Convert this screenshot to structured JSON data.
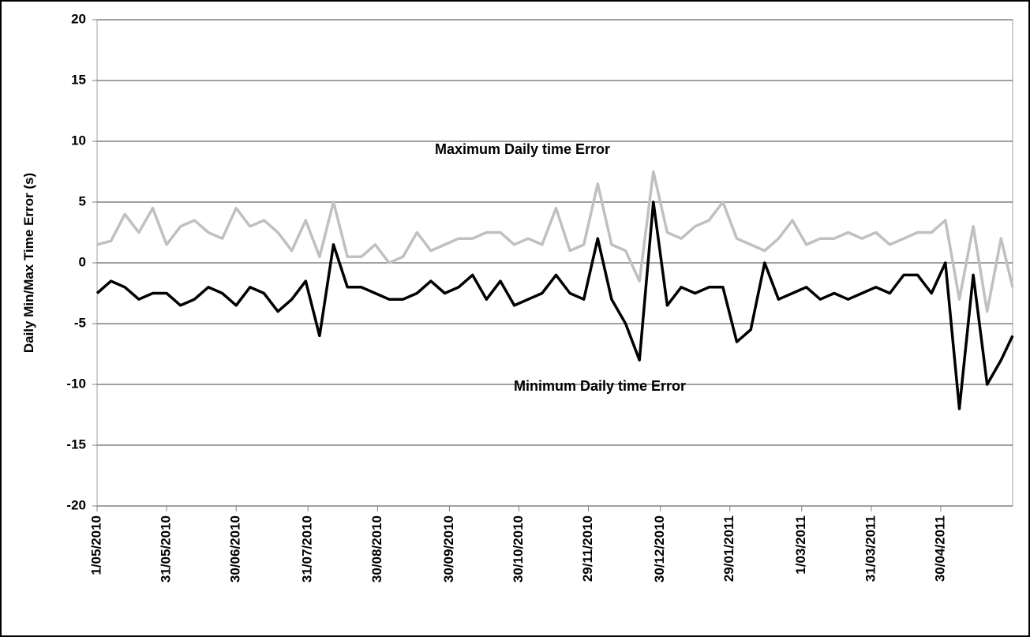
{
  "chart_data": {
    "type": "line",
    "y_label": "Daily Min/Max Time Error (s)",
    "annotations": [
      "Maximum Daily time Error",
      "Minimum Daily time Error"
    ],
    "x": [
      "1/05/2010",
      "7/05/2010",
      "13/05/2010",
      "19/05/2010",
      "25/05/2010",
      "31/05/2010",
      "6/06/2010",
      "12/06/2010",
      "18/06/2010",
      "24/06/2010",
      "30/06/2010",
      "6/07/2010",
      "12/07/2010",
      "18/07/2010",
      "24/07/2010",
      "30/07/2010",
      "5/08/2010",
      "11/08/2010",
      "17/08/2010",
      "23/08/2010",
      "29/08/2010",
      "4/09/2010",
      "10/09/2010",
      "16/09/2010",
      "22/09/2010",
      "28/09/2010",
      "4/10/2010",
      "10/10/2010",
      "16/10/2010",
      "22/10/2010",
      "28/10/2010",
      "3/11/2010",
      "9/11/2010",
      "15/11/2010",
      "21/11/2010",
      "27/11/2010",
      "3/12/2010",
      "9/12/2010",
      "15/12/2010",
      "21/12/2010",
      "27/12/2010",
      "2/01/2011",
      "8/01/2011",
      "14/01/2011",
      "20/01/2011",
      "26/01/2011",
      "1/02/2011",
      "7/02/2011",
      "13/02/2011",
      "19/02/2011",
      "25/02/2011",
      "3/03/2011",
      "9/03/2011",
      "15/03/2011",
      "21/03/2011",
      "27/03/2011",
      "2/04/2011",
      "8/04/2011",
      "14/04/2011",
      "20/04/2011",
      "26/04/2011",
      "2/05/2011",
      "8/05/2011",
      "14/05/2011",
      "20/05/2011",
      "26/05/2011",
      "31/05/2011"
    ],
    "series": [
      {
        "name": "Maximum Daily time Error",
        "color": "#c0c0c0",
        "values": [
          1.5,
          1.8,
          4,
          2.5,
          4.5,
          1.5,
          3,
          3.5,
          2.5,
          2,
          4.5,
          3,
          3.5,
          2.5,
          1,
          3.5,
          0.5,
          5,
          0.5,
          0.5,
          1.5,
          0,
          0.5,
          2.5,
          1,
          1.5,
          2,
          2,
          2.5,
          2.5,
          1.5,
          2,
          1.5,
          4.5,
          1,
          1.5,
          6.5,
          1.5,
          1,
          -1.5,
          7.5,
          2.5,
          2,
          3,
          3.5,
          5,
          2,
          1.5,
          1,
          2,
          3.5,
          1.5,
          2,
          2,
          2.5,
          2,
          2.5,
          1.5,
          2,
          2.5,
          2.5,
          3.5,
          -3,
          3,
          -4,
          2,
          -2
        ]
      },
      {
        "name": "Minimum Daily time Error",
        "color": "#000000",
        "values": [
          -2.5,
          -1.5,
          -2,
          -3,
          -2.5,
          -2.5,
          -3.5,
          -3,
          -2,
          -2.5,
          -3.5,
          -2,
          -2.5,
          -4,
          -3,
          -1.5,
          -6,
          1.5,
          -2,
          -2,
          -2.5,
          -3,
          -3,
          -2.5,
          -1.5,
          -2.5,
          -2,
          -1,
          -3,
          -1.5,
          -3.5,
          -3,
          -2.5,
          -1,
          -2.5,
          -3,
          2,
          -3,
          -5,
          -8,
          5,
          -3.5,
          -2,
          -2.5,
          -2,
          -2,
          -6.5,
          -5.5,
          0,
          -3,
          -2.5,
          -2,
          -3,
          -2.5,
          -3,
          -2.5,
          -2,
          -2.5,
          -1,
          -1,
          -2.5,
          0,
          -12,
          -1,
          -10,
          -8,
          -6
        ]
      }
    ],
    "xlim": [
      "1/05/2010",
      "31/05/2011"
    ],
    "xticks": [
      "1/05/2010",
      "31/05/2010",
      "30/06/2010",
      "31/07/2010",
      "30/08/2010",
      "30/09/2010",
      "30/10/2010",
      "29/11/2010",
      "30/12/2010",
      "29/01/2011",
      "1/03/2011",
      "31/03/2011",
      "30/04/2011"
    ],
    "ylim": [
      -20,
      20
    ],
    "yticks": [
      -20,
      -15,
      -10,
      -5,
      0,
      5,
      10,
      15,
      20
    ],
    "grid": true
  }
}
